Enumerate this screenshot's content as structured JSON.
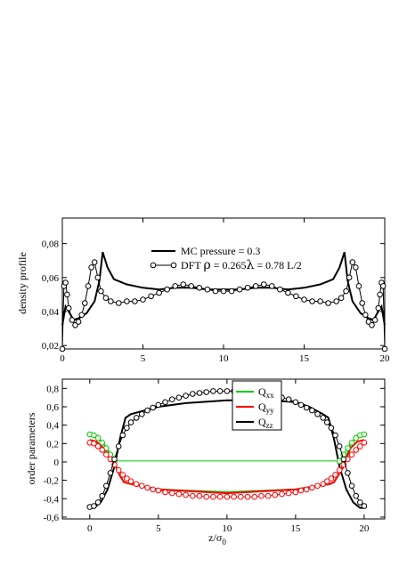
{
  "chart_data": [
    {
      "type": "line",
      "ylabel": "density profile",
      "xlabel": "",
      "xlim": [
        0,
        20
      ],
      "ylim": [
        0.018,
        0.095
      ],
      "xticks": [
        0,
        5,
        10,
        15,
        20
      ],
      "yticks": [
        0.02,
        0.04,
        0.06,
        0.08
      ],
      "xtick_labels": [
        "0",
        "5",
        "10",
        "15",
        "20"
      ],
      "ytick_labels": [
        "0,02",
        "0,04",
        "0,06",
        "0,08"
      ],
      "legend": {
        "mc_label": "MC pressure = 0.3",
        "dft_prefix": "DFT ",
        "dft_rho": "ρ",
        "dft_rho_value": " = 0.265",
        "dft_lambda": "λ",
        "dft_lambda_value": " =  0.78 L/2",
        "placement": "top-center"
      },
      "series": [
        {
          "name": "MC pressure = 0.3",
          "style": "solid",
          "color": "#000000",
          "x": [
            0,
            0.2,
            0.4,
            0.7,
            1.0,
            1.5,
            2.0,
            2.3,
            2.5,
            2.8,
            3.2,
            4,
            5,
            6,
            7,
            8,
            9,
            10,
            11,
            12,
            13,
            14,
            15,
            16,
            16.8,
            17.2,
            17.5,
            17.7,
            18,
            18.5,
            19,
            19.3,
            19.6,
            19.8,
            20
          ],
          "y": [
            0.032,
            0.043,
            0.04,
            0.035,
            0.036,
            0.039,
            0.046,
            0.058,
            0.075,
            0.066,
            0.059,
            0.056,
            0.054,
            0.053,
            0.054,
            0.054,
            0.053,
            0.053,
            0.053,
            0.054,
            0.054,
            0.053,
            0.054,
            0.056,
            0.059,
            0.066,
            0.075,
            0.058,
            0.046,
            0.039,
            0.036,
            0.035,
            0.04,
            0.043,
            0.032
          ]
        },
        {
          "name": "DFT",
          "style": "open-circles",
          "color": "#000000",
          "x": [
            0,
            0.1,
            0.2,
            0.3,
            0.4,
            0.6,
            0.8,
            1.0,
            1.2,
            1.4,
            1.6,
            1.8,
            2.0,
            2.2,
            2.4,
            2.7,
            3.0,
            3.5,
            4,
            4.5,
            5,
            5.5,
            6,
            6.5,
            7,
            7.5,
            8,
            8.5,
            9,
            9.5,
            10,
            10.5,
            11,
            11.5,
            12,
            12.5,
            13,
            13.5,
            14,
            14.5,
            15,
            15.5,
            16,
            16.5,
            17,
            17.3,
            17.6,
            17.8,
            18.0,
            18.2,
            18.4,
            18.6,
            18.8,
            19.0,
            19.2,
            19.4,
            19.6,
            19.7,
            19.8,
            19.9,
            20
          ],
          "y": [
            0.018,
            0.055,
            0.057,
            0.05,
            0.042,
            0.035,
            0.032,
            0.034,
            0.038,
            0.045,
            0.055,
            0.066,
            0.069,
            0.06,
            0.052,
            0.048,
            0.046,
            0.045,
            0.046,
            0.046,
            0.047,
            0.049,
            0.051,
            0.053,
            0.055,
            0.056,
            0.055,
            0.054,
            0.053,
            0.052,
            0.052,
            0.052,
            0.053,
            0.054,
            0.055,
            0.056,
            0.055,
            0.053,
            0.051,
            0.049,
            0.047,
            0.046,
            0.046,
            0.045,
            0.046,
            0.048,
            0.052,
            0.06,
            0.069,
            0.066,
            0.055,
            0.045,
            0.038,
            0.034,
            0.032,
            0.035,
            0.042,
            0.05,
            0.057,
            0.055,
            0.018
          ]
        }
      ]
    },
    {
      "type": "line",
      "ylabel": "order parameters",
      "xlabel_main": "z/σ",
      "xlabel_sub": "0",
      "xlim": [
        -2,
        21.5
      ],
      "ylim": [
        -0.62,
        0.9
      ],
      "xticks": [
        0,
        5,
        10,
        15,
        20
      ],
      "yticks": [
        -0.6,
        -0.4,
        -0.2,
        0,
        0.2,
        0.4,
        0.6,
        0.8
      ],
      "xtick_labels": [
        "0",
        "5",
        "10",
        "15",
        "20"
      ],
      "ytick_labels": [
        "-0,6",
        "-0,4",
        "-0,2",
        "0",
        "0,2",
        "0,4",
        "0,6",
        "0,8"
      ],
      "legend": {
        "placement": "top-right-inset",
        "entries": [
          {
            "main": "Q",
            "sub": "xx",
            "color": "#00cc00"
          },
          {
            "main": "Q",
            "sub": "yy",
            "color": "#ff0000"
          },
          {
            "main": "Q",
            "sub": "zz",
            "color": "#000000"
          }
        ]
      },
      "series": [
        {
          "name": "Q_xx",
          "style": "solid",
          "color": "#00cc00",
          "x": [
            0,
            0.5,
            1.0,
            1.5,
            1.9,
            2.2,
            2.5,
            3,
            5,
            10,
            15,
            17.5,
            17.8,
            18.1,
            18.5,
            19.0,
            19.5,
            20
          ],
          "y": [
            0.3,
            0.27,
            0.2,
            0.08,
            -0.05,
            -0.15,
            -0.22,
            -0.24,
            -0.3,
            -0.33,
            -0.3,
            -0.24,
            -0.22,
            -0.15,
            -0.05,
            0.2,
            0.27,
            0.3
          ]
        },
        {
          "name": "Q_yy",
          "style": "solid",
          "color": "#ff0000",
          "x": [
            0,
            0.5,
            1.0,
            1.5,
            1.9,
            2.2,
            2.5,
            3,
            5,
            10,
            15,
            17.5,
            17.8,
            18.1,
            18.5,
            19.0,
            19.5,
            20
          ],
          "y": [
            0.24,
            0.22,
            0.15,
            0.05,
            -0.05,
            -0.15,
            -0.22,
            -0.24,
            -0.3,
            -0.34,
            -0.3,
            -0.24,
            -0.22,
            -0.15,
            -0.05,
            0.15,
            0.22,
            0.24
          ]
        },
        {
          "name": "Q_zz",
          "style": "solid",
          "color": "#000000",
          "x": [
            0,
            0.3,
            0.8,
            1.3,
            1.8,
            2.2,
            2.6,
            3.0,
            4,
            5,
            7,
            10,
            13,
            15,
            16,
            17,
            17.4,
            17.8,
            18.2,
            18.7,
            19.2,
            19.7,
            20
          ],
          "y": [
            -0.5,
            -0.5,
            -0.44,
            -0.3,
            -0.05,
            0.25,
            0.48,
            0.52,
            0.56,
            0.6,
            0.64,
            0.67,
            0.67,
            0.65,
            0.6,
            0.52,
            0.48,
            0.25,
            -0.05,
            -0.3,
            -0.44,
            -0.5,
            -0.5
          ]
        },
        {
          "name": "DFT Q_xx",
          "style": "open-circles",
          "color": "#00cc00",
          "x": [
            0,
            0.3,
            0.6,
            0.9,
            1.2,
            1.5,
            1.8,
            18.2,
            18.5,
            18.8,
            19.1,
            19.4,
            19.7,
            20
          ],
          "y": [
            0.3,
            0.29,
            0.26,
            0.21,
            0.15,
            0.08,
            0.01,
            0.01,
            0.08,
            0.15,
            0.21,
            0.26,
            0.29,
            0.3
          ]
        },
        {
          "name": "DFT Q_yy",
          "style": "open-circles",
          "color": "#ff0000",
          "x": [
            0,
            0.3,
            0.6,
            0.9,
            1.2,
            1.5,
            1.8,
            2.1,
            2.4,
            2.7,
            3.0,
            3.4,
            3.8,
            4.2,
            4.6,
            5.0,
            5.5,
            6,
            6.5,
            7,
            7.5,
            8,
            8.5,
            9,
            9.5,
            10,
            10.5,
            11,
            11.5,
            12,
            12.5,
            13,
            13.5,
            14,
            14.5,
            15,
            15.4,
            15.8,
            16.2,
            16.6,
            17.0,
            17.3,
            17.6,
            17.9,
            18.2,
            18.5,
            18.8,
            19.1,
            19.4,
            19.7,
            20
          ],
          "y": [
            0.21,
            0.2,
            0.17,
            0.13,
            0.08,
            0.03,
            -0.03,
            -0.09,
            -0.14,
            -0.18,
            -0.21,
            -0.24,
            -0.26,
            -0.28,
            -0.3,
            -0.31,
            -0.33,
            -0.34,
            -0.35,
            -0.36,
            -0.37,
            -0.37,
            -0.38,
            -0.38,
            -0.38,
            -0.38,
            -0.38,
            -0.38,
            -0.38,
            -0.38,
            -0.37,
            -0.37,
            -0.36,
            -0.35,
            -0.34,
            -0.33,
            -0.31,
            -0.3,
            -0.28,
            -0.26,
            -0.24,
            -0.21,
            -0.18,
            -0.14,
            -0.09,
            -0.03,
            0.03,
            0.08,
            0.13,
            0.17,
            0.21
          ]
        },
        {
          "name": "DFT Q_zz",
          "style": "open-circles",
          "color": "#000000",
          "x": [
            0,
            0.3,
            0.6,
            0.9,
            1.2,
            1.5,
            1.8,
            2.1,
            2.4,
            2.7,
            3.0,
            3.4,
            3.8,
            4.2,
            4.6,
            5.0,
            5.5,
            6,
            6.5,
            7,
            7.5,
            8,
            8.5,
            9,
            9.5,
            10,
            10.5,
            11,
            11.5,
            12,
            12.5,
            13,
            13.5,
            14,
            14.5,
            15,
            15.4,
            15.8,
            16.2,
            16.6,
            17.0,
            17.3,
            17.6,
            17.9,
            18.2,
            18.5,
            18.8,
            19.1,
            19.4,
            19.7,
            20
          ],
          "y": [
            -0.49,
            -0.48,
            -0.44,
            -0.37,
            -0.26,
            -0.12,
            0.03,
            0.17,
            0.29,
            0.37,
            0.43,
            0.48,
            0.52,
            0.56,
            0.59,
            0.62,
            0.65,
            0.68,
            0.7,
            0.72,
            0.74,
            0.75,
            0.76,
            0.77,
            0.77,
            0.77,
            0.77,
            0.77,
            0.77,
            0.76,
            0.75,
            0.74,
            0.72,
            0.7,
            0.68,
            0.65,
            0.62,
            0.59,
            0.56,
            0.52,
            0.48,
            0.43,
            0.37,
            0.29,
            0.17,
            0.03,
            -0.12,
            -0.26,
            -0.37,
            -0.44,
            -0.48
          ]
        }
      ]
    }
  ]
}
